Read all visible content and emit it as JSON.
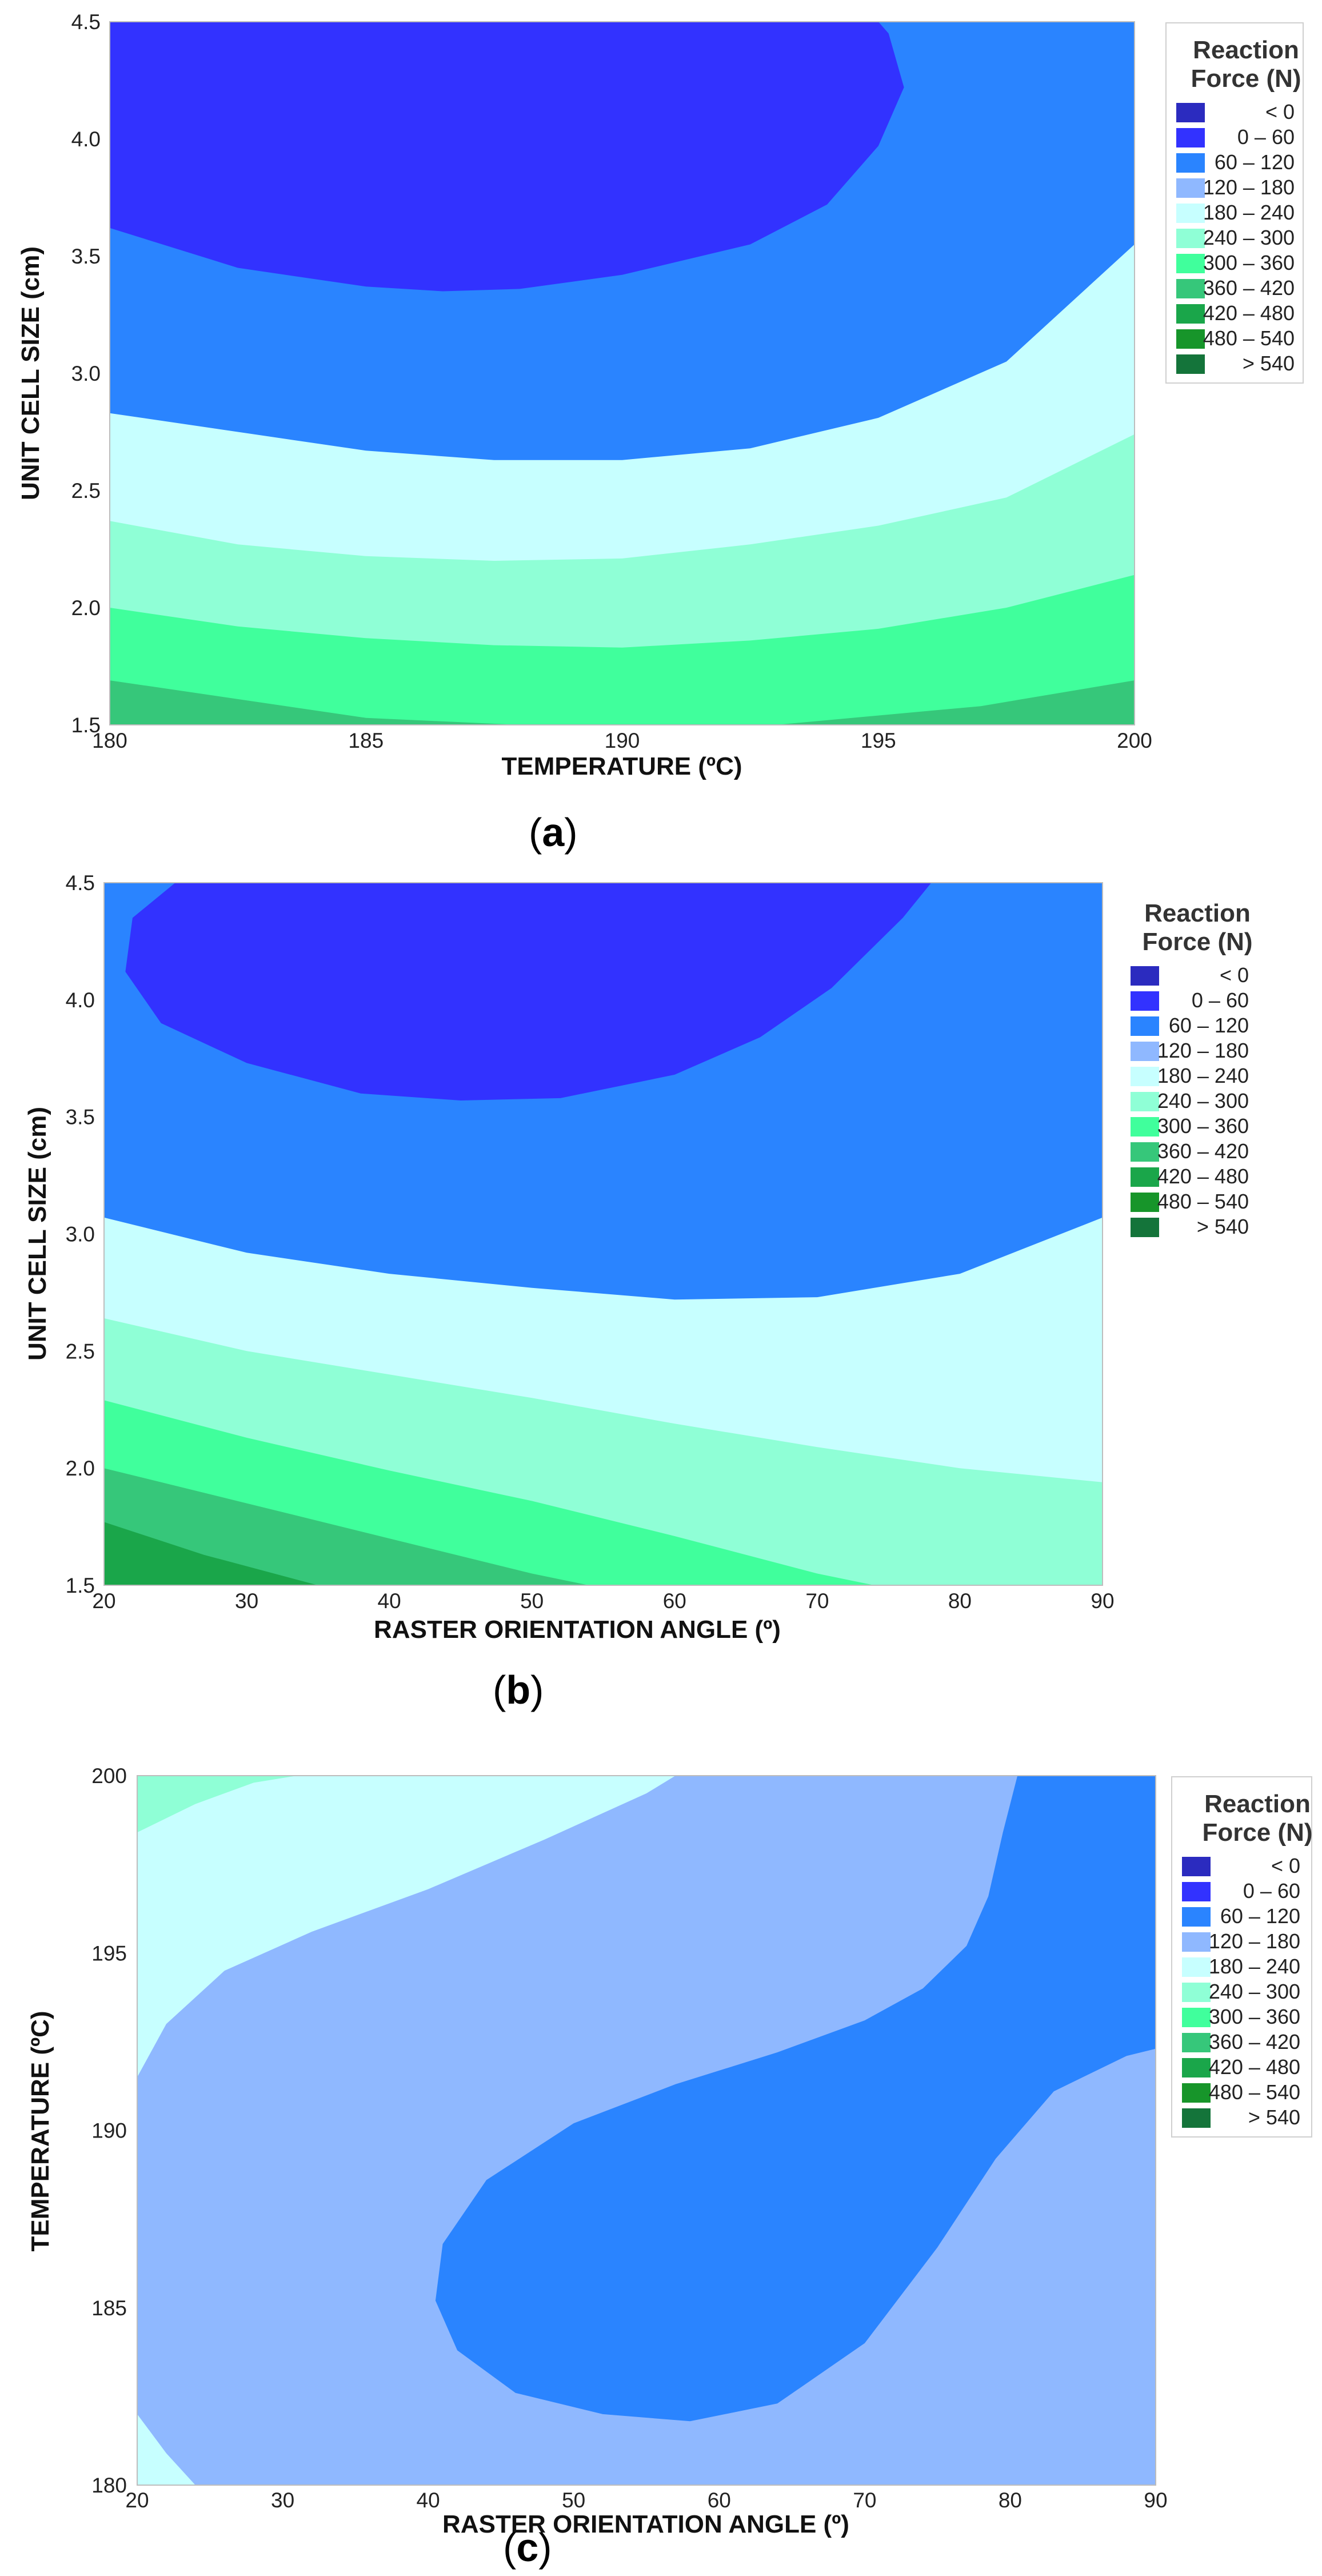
{
  "legend": {
    "title_line1": "Reaction",
    "title_line2": "Force (N)",
    "ranges": [
      "<    0",
      "0  –  60",
      "60  –  120",
      "120  –  180",
      "180  –  240",
      "240  –  300",
      "300  –  360",
      "360  –  420",
      "420  –  480",
      "480  –  540",
      ">  540"
    ],
    "colors": [
      "#2b2bbf",
      "#3232ff",
      "#2a84ff",
      "#8fb8ff",
      "#c7ffff",
      "#8fffd6",
      "#40ff9c",
      "#36c77a",
      "#1aa64a",
      "#17952a",
      "#14743a"
    ]
  },
  "chart_data": [
    {
      "type": "contour",
      "caption_letter": "a",
      "xlabel": "TEMPERATURE (ºC)",
      "ylabel": "UNIT CELL SIZE (cm)",
      "xlim": [
        180,
        200
      ],
      "ylim": [
        1.5,
        4.5
      ],
      "x_ticks": [
        "180",
        "185",
        "190",
        "195",
        "200"
      ],
      "y_ticks": [
        "1.5",
        "2.0",
        "2.5",
        "3.0",
        "3.5",
        "4.0",
        "4.5"
      ],
      "contour_boundaries": [
        {
          "level": 300,
          "points": [
            [
              180,
              1.69
            ],
            [
              185,
              1.53
            ],
            [
              188,
              1.5
            ],
            [
              193,
              1.5
            ],
            [
              197,
              1.58
            ],
            [
              200,
              1.69
            ]
          ]
        },
        {
          "level": 240,
          "points": [
            [
              180,
              2.0
            ],
            [
              182.5,
              1.92
            ],
            [
              185,
              1.87
            ],
            [
              187.5,
              1.84
            ],
            [
              190,
              1.83
            ],
            [
              192.5,
              1.86
            ],
            [
              195,
              1.91
            ],
            [
              197.5,
              2.0
            ],
            [
              200,
              2.14
            ]
          ]
        },
        {
          "level": 180,
          "points": [
            [
              180,
              2.37
            ],
            [
              182.5,
              2.27
            ],
            [
              185,
              2.22
            ],
            [
              187.5,
              2.2
            ],
            [
              190,
              2.21
            ],
            [
              192.5,
              2.27
            ],
            [
              195,
              2.35
            ],
            [
              197.5,
              2.47
            ],
            [
              200,
              2.74
            ]
          ]
        },
        {
          "level": 120,
          "points": [
            [
              180,
              2.83
            ],
            [
              182.5,
              2.75
            ],
            [
              185,
              2.67
            ],
            [
              187.5,
              2.63
            ],
            [
              190,
              2.63
            ],
            [
              192.5,
              2.68
            ],
            [
              195,
              2.81
            ],
            [
              197.5,
              3.05
            ],
            [
              200,
              3.55
            ]
          ]
        },
        {
          "level": 60,
          "points": [
            [
              180,
              3.62
            ],
            [
              182.5,
              3.45
            ],
            [
              185,
              3.37
            ],
            [
              186.5,
              3.35
            ],
            [
              188,
              3.36
            ],
            [
              190,
              3.42
            ],
            [
              192.5,
              3.55
            ],
            [
              194,
              3.72
            ],
            [
              195,
              3.97
            ],
            [
              195.5,
              4.22
            ],
            [
              195.2,
              4.45
            ],
            [
              195,
              4.5
            ]
          ]
        }
      ]
    },
    {
      "type": "contour",
      "caption_letter": "b",
      "xlabel": "RASTER ORIENTATION ANGLE (º)",
      "ylabel": "UNIT CELL SIZE (cm)",
      "xlim": [
        20,
        90
      ],
      "ylim": [
        1.5,
        4.5
      ],
      "x_ticks": [
        "20",
        "30",
        "40",
        "50",
        "60",
        "70",
        "80",
        "90"
      ],
      "y_ticks": [
        "1.5",
        "2.0",
        "2.5",
        "3.0",
        "3.5",
        "4.0",
        "4.5"
      ],
      "contour_boundaries": [
        {
          "level": 360,
          "points": [
            [
              20,
              1.77
            ],
            [
              27,
              1.63
            ],
            [
              35,
              1.5
            ]
          ]
        },
        {
          "level": 300,
          "points": [
            [
              20,
              2.0
            ],
            [
              30,
              1.85
            ],
            [
              40,
              1.7
            ],
            [
              50,
              1.55
            ],
            [
              54,
              1.5
            ]
          ]
        },
        {
          "level": 240,
          "points": [
            [
              20,
              2.29
            ],
            [
              30,
              2.13
            ],
            [
              40,
              1.99
            ],
            [
              50,
              1.86
            ],
            [
              60,
              1.71
            ],
            [
              70,
              1.55
            ],
            [
              74,
              1.5
            ]
          ]
        },
        {
          "level": 180,
          "points": [
            [
              20,
              2.64
            ],
            [
              30,
              2.5
            ],
            [
              40,
              2.4
            ],
            [
              50,
              2.3
            ],
            [
              60,
              2.19
            ],
            [
              70,
              2.09
            ],
            [
              80,
              2.0
            ],
            [
              90,
              1.94
            ]
          ]
        },
        {
          "level": 120,
          "points": [
            [
              20,
              3.07
            ],
            [
              30,
              2.92
            ],
            [
              40,
              2.83
            ],
            [
              50,
              2.77
            ],
            [
              60,
              2.72
            ],
            [
              70,
              2.73
            ],
            [
              80,
              2.83
            ],
            [
              90,
              3.07
            ]
          ]
        },
        {
          "level": 60,
          "closed": false,
          "points": [
            [
              25,
              4.5
            ],
            [
              22,
              4.35
            ],
            [
              21.5,
              4.12
            ],
            [
              24,
              3.9
            ],
            [
              30,
              3.73
            ],
            [
              38,
              3.6
            ],
            [
              45,
              3.57
            ],
            [
              52,
              3.58
            ],
            [
              60,
              3.68
            ],
            [
              66,
              3.84
            ],
            [
              71,
              4.05
            ],
            [
              76,
              4.35
            ],
            [
              78,
              4.5
            ]
          ]
        }
      ]
    },
    {
      "type": "contour",
      "caption_letter": "c",
      "xlabel": "RASTER ORIENTATION ANGLE (º)",
      "ylabel": "TEMPERATURE (ºC)",
      "xlim": [
        20,
        90
      ],
      "ylim": [
        180,
        200
      ],
      "x_ticks": [
        "20",
        "30",
        "40",
        "50",
        "60",
        "70",
        "80",
        "90"
      ],
      "y_ticks": [
        "180",
        "185",
        "190",
        "195",
        "200"
      ],
      "contour_boundaries": [
        {
          "level": 240,
          "points": [
            [
              20,
              198.4
            ],
            [
              24,
              199.2
            ],
            [
              28,
              199.8
            ],
            [
              31,
              200
            ]
          ]
        },
        {
          "level": 180,
          "points": [
            [
              20,
              191.5
            ],
            [
              22,
              193.0
            ],
            [
              26,
              194.5
            ],
            [
              32,
              195.6
            ],
            [
              40,
              196.8
            ],
            [
              48,
              198.2
            ],
            [
              55,
              199.5
            ],
            [
              57,
              200
            ]
          ]
        },
        {
          "level": 180,
          "points": [
            [
              20,
              182.0
            ],
            [
              22,
              180.9
            ],
            [
              24,
              180
            ]
          ]
        },
        {
          "level": 120,
          "points": [
            [
              80.5,
              200
            ],
            [
              79.5,
              198.4
            ],
            [
              78.5,
              196.6
            ],
            [
              77,
              195.2
            ],
            [
              74,
              194
            ],
            [
              70,
              193.1
            ],
            [
              64,
              192.2
            ],
            [
              57,
              191.3
            ],
            [
              50,
              190.2
            ],
            [
              44,
              188.6
            ],
            [
              41,
              186.8
            ],
            [
              40.5,
              185.2
            ],
            [
              42,
              183.8
            ],
            [
              46,
              182.6
            ],
            [
              52,
              182.0
            ],
            [
              58,
              181.8
            ],
            [
              64,
              182.3
            ],
            [
              70,
              184.0
            ],
            [
              75,
              186.7
            ],
            [
              79,
              189.2
            ],
            [
              83,
              191.1
            ],
            [
              88,
              192.1
            ],
            [
              90,
              192.3
            ]
          ]
        }
      ]
    }
  ]
}
